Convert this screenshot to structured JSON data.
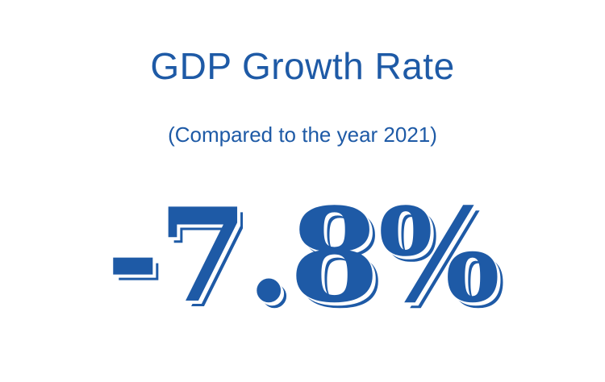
{
  "title": "GDP Growth Rate",
  "subtitle": "(Compared to the year 2021)",
  "value": "-7.8%",
  "colors": {
    "accent": "#1e5aa6",
    "background": "#ffffff"
  }
}
